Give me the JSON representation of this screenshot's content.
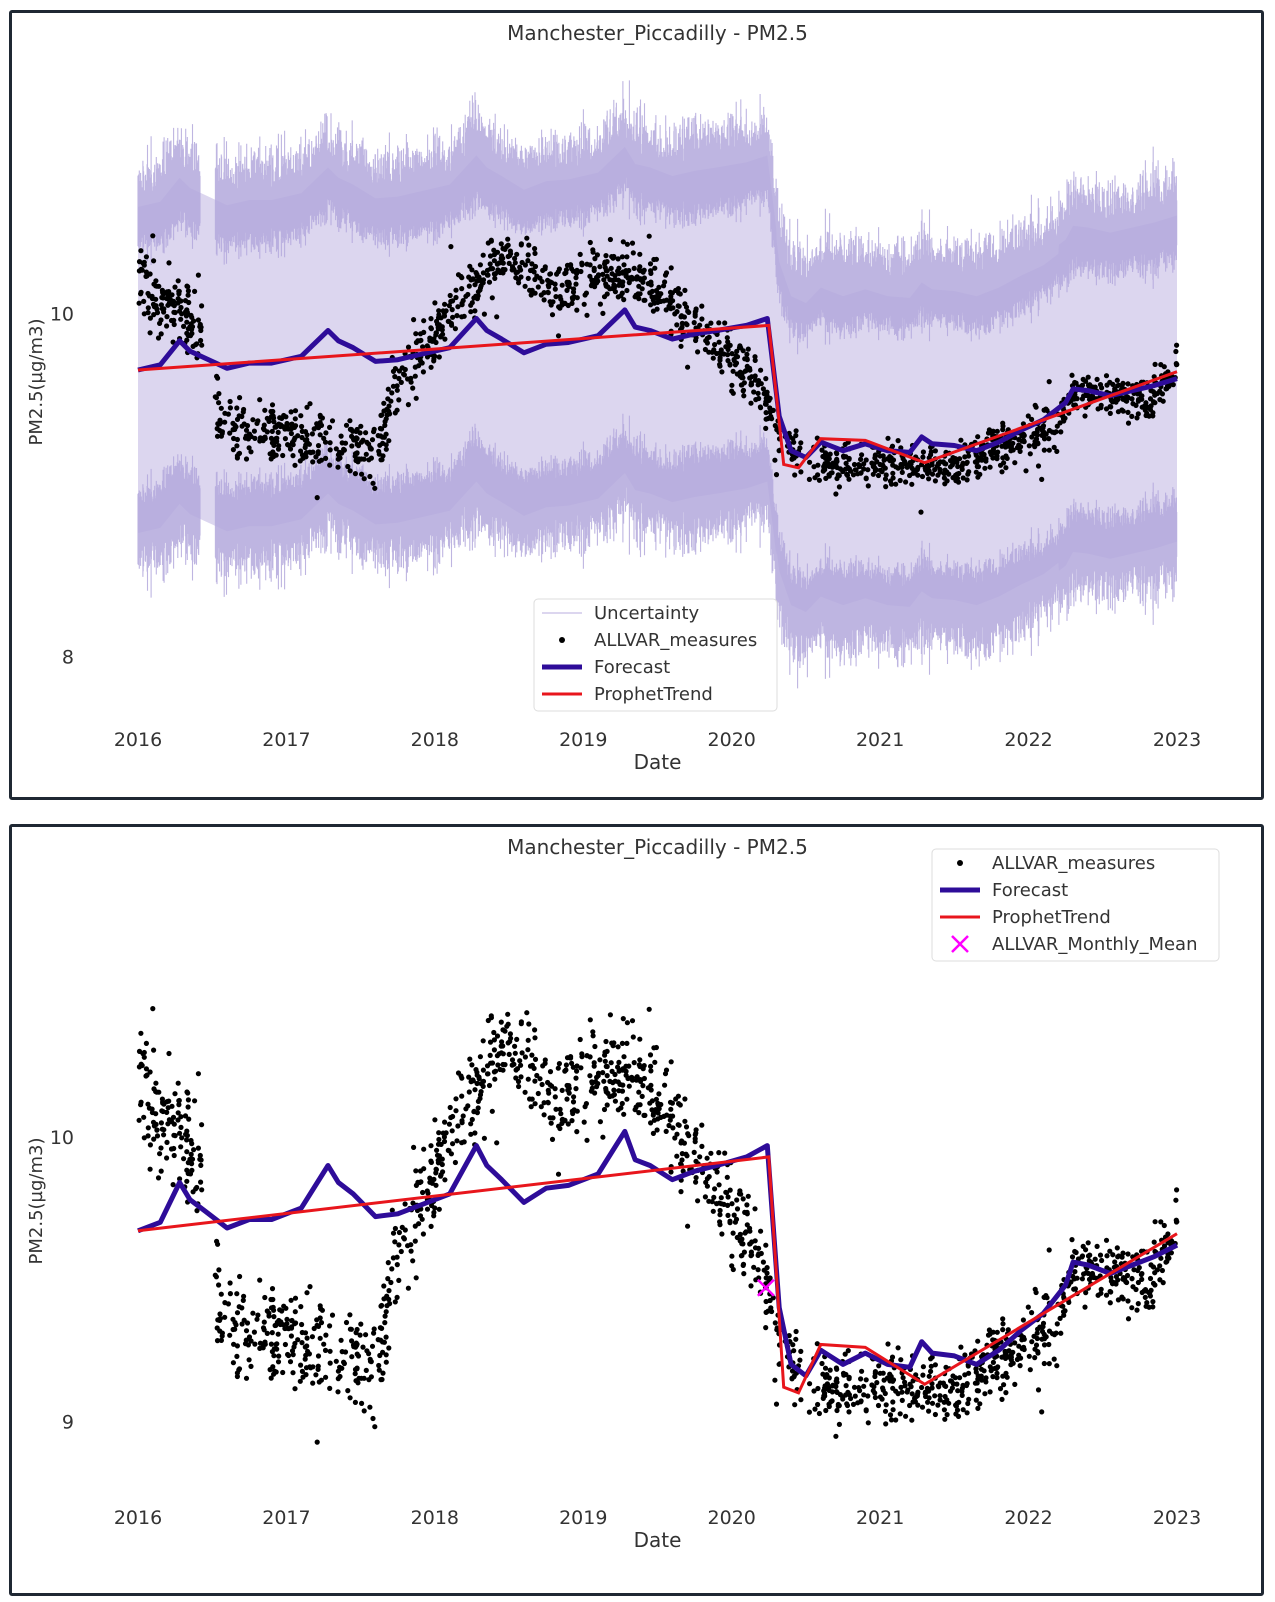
{
  "chart_data": [
    {
      "type": "line",
      "title": "Manchester_Piccadilly - PM2.5",
      "xlabel": "Date",
      "ylabel": "PM2.5(µg/m3)",
      "xlim": [
        2016.0,
        2023.0
      ],
      "ylim": [
        7.8,
        11.4
      ],
      "xticks": [
        2016,
        2017,
        2018,
        2019,
        2020,
        2021,
        2022,
        2023
      ],
      "yticks": [
        8,
        10
      ],
      "grid": false,
      "legend_position": "bottom-center",
      "legend": [
        "Uncertainty",
        "ALLVAR_measures",
        "Forecast",
        "ProphetTrend"
      ],
      "colors": {
        "uncertainty": "#b3a8dc",
        "uncertainty_fill": "#dcd6ef",
        "measures": "#000000",
        "forecast": "#2e0c99",
        "trend": "#e8161c"
      },
      "series": [
        {
          "name": "ProphetTrend",
          "x": [
            2016.0,
            2020.25,
            2020.35,
            2020.45,
            2020.6,
            2020.9,
            2021.3,
            2023.0
          ],
          "y": [
            9.67,
            9.93,
            9.12,
            9.1,
            9.27,
            9.26,
            9.13,
            9.66
          ]
        },
        {
          "name": "Forecast",
          "x": [
            2016.0,
            2016.15,
            2016.28,
            2016.35,
            2016.45,
            2016.6,
            2016.75,
            2016.9,
            2017.1,
            2017.28,
            2017.35,
            2017.45,
            2017.6,
            2017.75,
            2017.9,
            2018.1,
            2018.28,
            2018.35,
            2018.45,
            2018.6,
            2018.75,
            2018.9,
            2019.1,
            2019.28,
            2019.35,
            2019.45,
            2019.6,
            2019.75,
            2019.9,
            2020.1,
            2020.24,
            2020.32,
            2020.4,
            2020.5,
            2020.6,
            2020.75,
            2020.9,
            2021.05,
            2021.2,
            2021.28,
            2021.35,
            2021.5,
            2021.65,
            2021.8,
            2021.95,
            2022.1,
            2022.25,
            2022.3,
            2022.4,
            2022.55,
            2022.7,
            2022.85,
            2023.0
          ],
          "y": [
            9.67,
            9.7,
            9.84,
            9.78,
            9.74,
            9.68,
            9.71,
            9.71,
            9.75,
            9.9,
            9.84,
            9.8,
            9.72,
            9.73,
            9.76,
            9.8,
            9.97,
            9.9,
            9.85,
            9.77,
            9.82,
            9.83,
            9.87,
            10.02,
            9.92,
            9.9,
            9.85,
            9.88,
            9.9,
            9.93,
            9.97,
            9.4,
            9.2,
            9.16,
            9.25,
            9.2,
            9.24,
            9.2,
            9.19,
            9.28,
            9.24,
            9.23,
            9.2,
            9.25,
            9.32,
            9.38,
            9.48,
            9.56,
            9.55,
            9.52,
            9.55,
            9.58,
            9.62
          ]
        }
      ]
    },
    {
      "type": "line",
      "title": "Manchester_Piccadilly - PM2.5",
      "xlabel": "Date",
      "ylabel": "PM2.5(µg/m3)",
      "xlim": [
        2016.0,
        2023.0
      ],
      "ylim": [
        8.6,
        10.95
      ],
      "xticks": [
        2016,
        2017,
        2018,
        2019,
        2020,
        2021,
        2022,
        2023
      ],
      "yticks": [
        9,
        10
      ],
      "grid": false,
      "legend_position": "top-right",
      "legend": [
        "ALLVAR_measures",
        "Forecast",
        "ProphetTrend",
        "ALLVAR_Monthly_Mean"
      ],
      "colors": {
        "measures": "#000000",
        "forecast": "#2e0c99",
        "trend": "#e8161c",
        "monthly_mean": "#ff00ff"
      },
      "series": [
        {
          "name": "ProphetTrend",
          "x": [
            2016.0,
            2020.25,
            2020.35,
            2020.45,
            2020.6,
            2020.9,
            2021.3,
            2023.0
          ],
          "y": [
            9.67,
            9.93,
            9.12,
            9.1,
            9.27,
            9.26,
            9.13,
            9.66
          ]
        },
        {
          "name": "Forecast",
          "x": [
            2016.0,
            2016.15,
            2016.28,
            2016.35,
            2016.45,
            2016.6,
            2016.75,
            2016.9,
            2017.1,
            2017.28,
            2017.35,
            2017.45,
            2017.6,
            2017.75,
            2017.9,
            2018.1,
            2018.28,
            2018.35,
            2018.45,
            2018.6,
            2018.75,
            2018.9,
            2019.1,
            2019.28,
            2019.35,
            2019.45,
            2019.6,
            2019.75,
            2019.9,
            2020.1,
            2020.24,
            2020.32,
            2020.4,
            2020.5,
            2020.6,
            2020.75,
            2020.9,
            2021.05,
            2021.2,
            2021.28,
            2021.35,
            2021.5,
            2021.65,
            2021.8,
            2021.95,
            2022.1,
            2022.25,
            2022.3,
            2022.4,
            2022.55,
            2022.7,
            2022.85,
            2023.0
          ],
          "y": [
            9.67,
            9.7,
            9.84,
            9.78,
            9.74,
            9.68,
            9.71,
            9.71,
            9.75,
            9.9,
            9.84,
            9.8,
            9.72,
            9.73,
            9.76,
            9.8,
            9.97,
            9.9,
            9.85,
            9.77,
            9.82,
            9.83,
            9.87,
            10.02,
            9.92,
            9.9,
            9.85,
            9.88,
            9.9,
            9.93,
            9.97,
            9.4,
            9.2,
            9.16,
            9.25,
            9.2,
            9.24,
            9.2,
            9.19,
            9.28,
            9.24,
            9.23,
            9.2,
            9.25,
            9.32,
            9.38,
            9.48,
            9.56,
            9.55,
            9.52,
            9.55,
            9.58,
            9.62
          ]
        },
        {
          "name": "ALLVAR_Monthly_Mean",
          "x": [
            2020.23
          ],
          "y": [
            9.47
          ]
        }
      ]
    }
  ]
}
